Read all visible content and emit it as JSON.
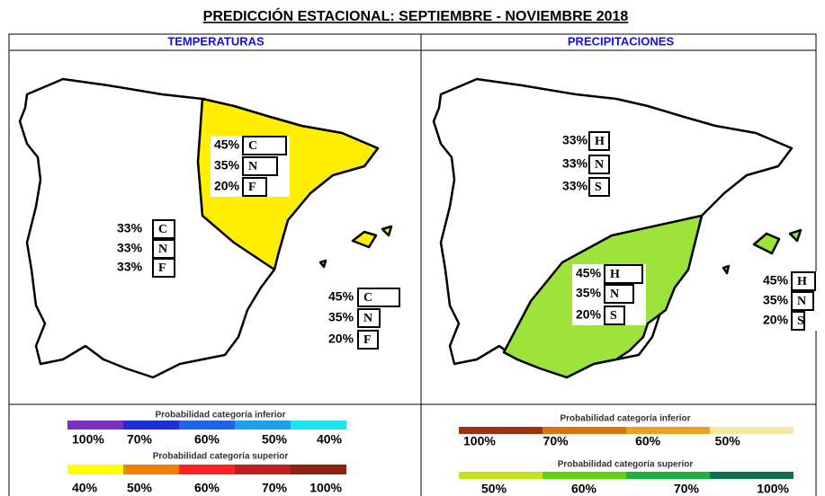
{
  "title": "PREDICCIÓN ESTACIONAL:  SEPTIEMBRE - NOVIEMBRE  2018",
  "panels": [
    {
      "header": "TEMPERATURAS",
      "regions": [
        {
          "rows": [
            {
              "pct": "45%",
              "cat": "C"
            },
            {
              "pct": "35%",
              "cat": "N"
            },
            {
              "pct": "20%",
              "cat": "F"
            }
          ]
        },
        {
          "rows": [
            {
              "pct": "33%",
              "cat": "C"
            },
            {
              "pct": "33%",
              "cat": "N"
            },
            {
              "pct": "33%",
              "cat": "F"
            }
          ]
        },
        {
          "rows": [
            {
              "pct": "45%",
              "cat": "C"
            },
            {
              "pct": "35%",
              "cat": "N"
            },
            {
              "pct": "20%",
              "cat": "F"
            }
          ]
        }
      ],
      "legend": {
        "lower_title": "Probabilidad categoría inferior",
        "lower_labels": [
          "100%",
          "70%",
          "60%",
          "50%",
          "40%"
        ],
        "upper_title": "Probabilidad categoría superior",
        "upper_labels": [
          "40%",
          "50%",
          "60%",
          "70%",
          "100%"
        ]
      }
    },
    {
      "header": "PRECIPITACIONES",
      "regions": [
        {
          "rows": [
            {
              "pct": "33%",
              "cat": "H"
            },
            {
              "pct": "33%",
              "cat": "N"
            },
            {
              "pct": "33%",
              "cat": "S"
            }
          ]
        },
        {
          "rows": [
            {
              "pct": "45%",
              "cat": "H"
            },
            {
              "pct": "35%",
              "cat": "N"
            },
            {
              "pct": "20%",
              "cat": "S"
            }
          ]
        },
        {
          "rows": [
            {
              "pct": "45%",
              "cat": "H"
            },
            {
              "pct": "35%",
              "cat": "N"
            },
            {
              "pct": "20%",
              "cat": "S"
            }
          ]
        }
      ],
      "legend": {
        "lower_title": "Probabilidad categoría inferior",
        "lower_labels": [
          "100%",
          "70%",
          "60%",
          "50%"
        ],
        "upper_title": "Probabilidad categoría superior",
        "upper_labels": [
          "50%",
          "60%",
          "70%",
          "100%"
        ]
      }
    }
  ]
}
